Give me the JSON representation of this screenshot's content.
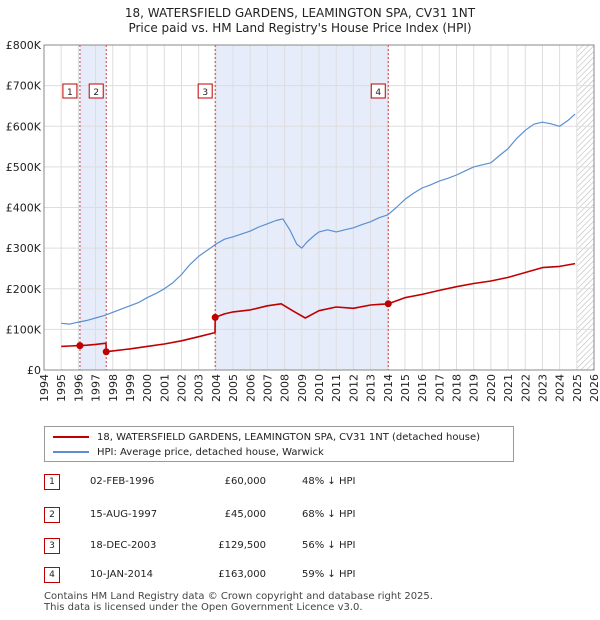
{
  "chart_data": {
    "type": "line",
    "title": "18, WATERSFIELD GARDENS, LEAMINGTON SPA, CV31 1NT",
    "subtitle": "Price paid vs. HM Land Registry's House Price Index (HPI)",
    "xlabel": "",
    "ylabel": "",
    "xlim": [
      1994,
      2026
    ],
    "ylim": [
      0,
      800000
    ],
    "y_ticks": [
      {
        "value": 0,
        "label": "£0"
      },
      {
        "value": 100000,
        "label": "£100K"
      },
      {
        "value": 200000,
        "label": "£200K"
      },
      {
        "value": 300000,
        "label": "£300K"
      },
      {
        "value": 400000,
        "label": "£400K"
      },
      {
        "value": 500000,
        "label": "£500K"
      },
      {
        "value": 600000,
        "label": "£600K"
      },
      {
        "value": 700000,
        "label": "£700K"
      },
      {
        "value": 800000,
        "label": "£800K"
      }
    ],
    "x_ticks": [
      "1994",
      "1995",
      "1996",
      "1997",
      "1998",
      "1999",
      "2000",
      "2001",
      "2002",
      "2003",
      "2004",
      "2005",
      "2006",
      "2007",
      "2008",
      "2009",
      "2010",
      "2011",
      "2012",
      "2013",
      "2014",
      "2015",
      "2016",
      "2017",
      "2018",
      "2019",
      "2020",
      "2021",
      "2022",
      "2023",
      "2024",
      "2025",
      "2026"
    ],
    "shaded_regions": [
      [
        1996.09,
        1997.62
      ],
      [
        2003.96,
        2014.03
      ]
    ],
    "hatched_regions": [
      [
        2025.0,
        2026.0
      ]
    ],
    "series": [
      {
        "name": "18, WATERSFIELD GARDENS, LEAMINGTON SPA, CV31 1NT (detached house)",
        "color": "#c00000",
        "x": [
          1995.0,
          1995.5,
          1996.09,
          1996.5,
          1997.0,
          1997.61,
          1997.62,
          1998.0,
          1999.0,
          2000.0,
          2001.0,
          2002.0,
          2003.0,
          2003.95,
          2003.96,
          2004.5,
          2005.0,
          2006.0,
          2007.0,
          2007.8,
          2008.5,
          2009.2,
          2010.0,
          2011.0,
          2012.0,
          2013.0,
          2014.03,
          2015.0,
          2016.0,
          2017.0,
          2018.0,
          2019.0,
          2020.0,
          2021.0,
          2022.0,
          2023.0,
          2024.0,
          2024.9
        ],
        "y": [
          58000,
          59000,
          60000,
          61000,
          63000,
          66000,
          45000,
          47000,
          52000,
          58000,
          64000,
          72000,
          82000,
          92000,
          129500,
          138000,
          143000,
          148000,
          158000,
          163000,
          145000,
          128000,
          146000,
          155000,
          152000,
          160000,
          163000,
          178000,
          186000,
          196000,
          205000,
          213000,
          219000,
          228000,
          240000,
          252000,
          255000,
          262000
        ]
      },
      {
        "name": "HPI: Average price, detached house, Warwick",
        "color": "#5b8fd1",
        "x": [
          1995.0,
          1995.5,
          1996.0,
          1996.5,
          1997.0,
          1997.5,
          1998.0,
          1998.5,
          1999.0,
          1999.5,
          2000.0,
          2000.5,
          2001.0,
          2001.5,
          2002.0,
          2002.5,
          2003.0,
          2003.5,
          2004.0,
          2004.5,
          2005.0,
          2005.5,
          2006.0,
          2006.5,
          2007.0,
          2007.5,
          2007.9,
          2008.3,
          2008.7,
          2009.0,
          2009.3,
          2009.7,
          2010.0,
          2010.5,
          2011.0,
          2011.5,
          2012.0,
          2012.5,
          2013.0,
          2013.5,
          2014.0,
          2014.5,
          2015.0,
          2015.5,
          2016.0,
          2016.5,
          2017.0,
          2017.5,
          2018.0,
          2018.5,
          2019.0,
          2019.5,
          2020.0,
          2020.5,
          2021.0,
          2021.5,
          2022.0,
          2022.5,
          2023.0,
          2023.5,
          2024.0,
          2024.5,
          2024.9
        ],
        "y": [
          115000,
          113000,
          118000,
          122000,
          128000,
          134000,
          142000,
          150000,
          158000,
          166000,
          178000,
          188000,
          200000,
          215000,
          235000,
          260000,
          280000,
          295000,
          310000,
          322000,
          328000,
          335000,
          342000,
          352000,
          360000,
          368000,
          372000,
          345000,
          310000,
          300000,
          315000,
          330000,
          340000,
          345000,
          340000,
          345000,
          350000,
          358000,
          365000,
          375000,
          382000,
          400000,
          420000,
          435000,
          448000,
          456000,
          465000,
          472000,
          480000,
          490000,
          500000,
          505000,
          510000,
          528000,
          545000,
          570000,
          590000,
          605000,
          610000,
          606000,
          600000,
          615000,
          630000
        ]
      }
    ],
    "annotations": [
      {
        "label": "1",
        "date": "02-FEB-1996",
        "x": 1996.09,
        "y": 60000
      },
      {
        "label": "2",
        "date": "15-AUG-1997",
        "x": 1997.62,
        "y": 45000
      },
      {
        "label": "3",
        "date": "18-DEC-2003",
        "x": 2003.96,
        "y": 129500
      },
      {
        "label": "4",
        "date": "10-JAN-2014",
        "x": 2014.03,
        "y": 163000
      }
    ]
  },
  "legend": {
    "items": [
      {
        "label": "18, WATERSFIELD GARDENS, LEAMINGTON SPA, CV31 1NT (detached house)",
        "color": "#c00000"
      },
      {
        "label": "HPI: Average price, detached house, Warwick",
        "color": "#5b8fd1"
      }
    ]
  },
  "transactions": [
    {
      "num": "1",
      "date": "02-FEB-1996",
      "price": "£60,000",
      "hpi": "48% ↓ HPI"
    },
    {
      "num": "2",
      "date": "15-AUG-1997",
      "price": "£45,000",
      "hpi": "68% ↓ HPI"
    },
    {
      "num": "3",
      "date": "18-DEC-2003",
      "price": "£129,500",
      "hpi": "56% ↓ HPI"
    },
    {
      "num": "4",
      "date": "10-JAN-2014",
      "price": "£163,000",
      "hpi": "59% ↓ HPI"
    }
  ],
  "footer": {
    "line1": "Contains HM Land Registry data © Crown copyright and database right 2025.",
    "line2": "This data is licensed under the Open Government Licence v3.0."
  }
}
